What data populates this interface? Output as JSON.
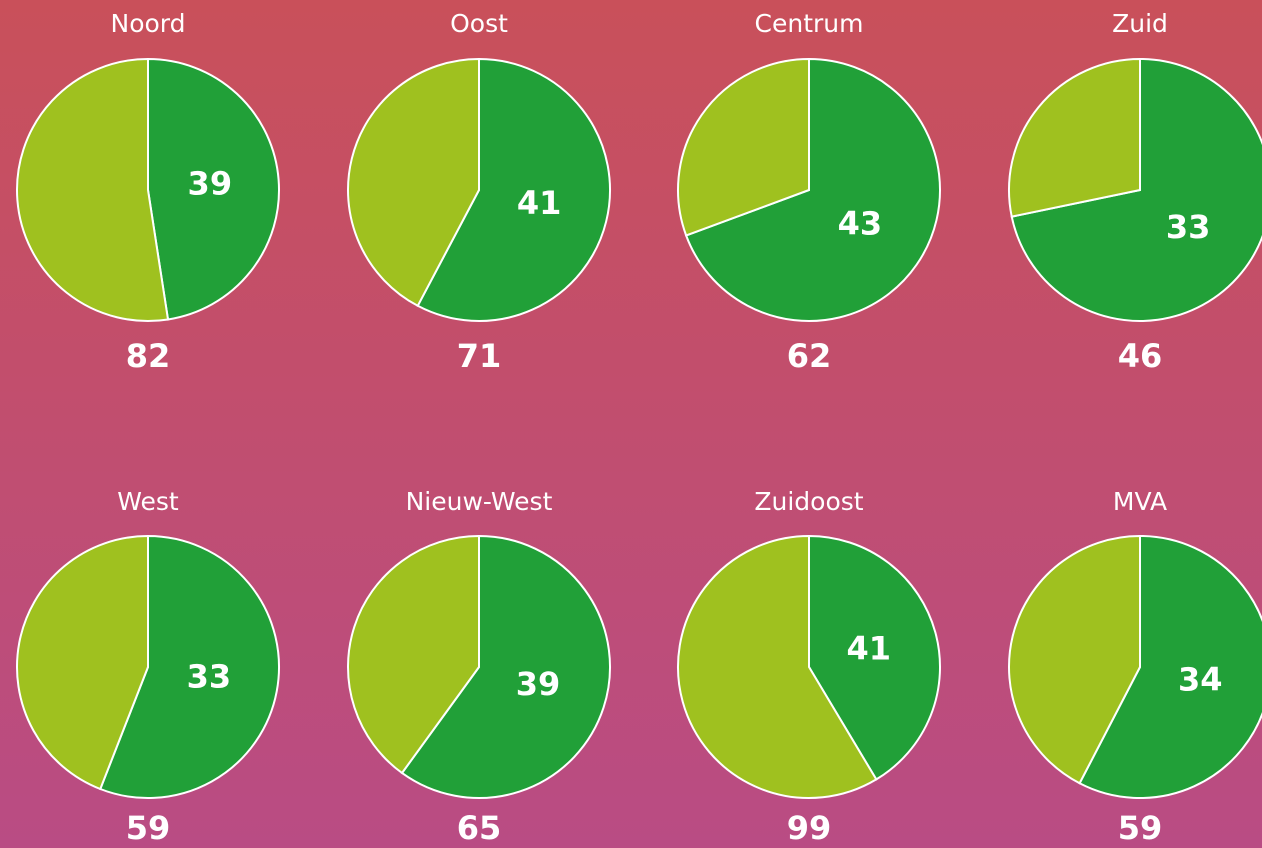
{
  "chart_data": [
    {
      "type": "pie",
      "title": "Noord",
      "value": 39,
      "total": 82,
      "color": "#21a038",
      "rest_color": "#9fc11f"
    },
    {
      "type": "pie",
      "title": "Oost",
      "value": 41,
      "total": 71,
      "color": "#21a038",
      "rest_color": "#9fc11f"
    },
    {
      "type": "pie",
      "title": "Centrum",
      "value": 43,
      "total": 62,
      "color": "#21a038",
      "rest_color": "#9fc11f"
    },
    {
      "type": "pie",
      "title": "Zuid",
      "value": 33,
      "total": 46,
      "color": "#21a038",
      "rest_color": "#9fc11f"
    },
    {
      "type": "pie",
      "title": "West",
      "value": 33,
      "total": 59,
      "color": "#21a038",
      "rest_color": "#9fc11f"
    },
    {
      "type": "pie",
      "title": "Nieuw-West",
      "value": 39,
      "total": 65,
      "color": "#21a038",
      "rest_color": "#9fc11f"
    },
    {
      "type": "pie",
      "title": "Zuidoost",
      "value": 41,
      "total": 99,
      "color": "#21a038",
      "rest_color": "#9fc11f"
    },
    {
      "type": "pie",
      "title": "MVA",
      "value": 34,
      "total": 59,
      "color": "#21a038",
      "rest_color": "#9fc11f"
    }
  ]
}
